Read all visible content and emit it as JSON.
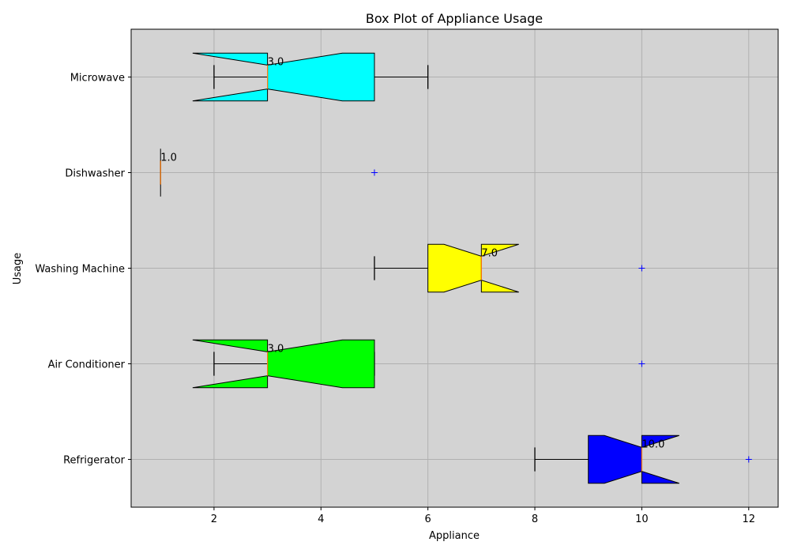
{
  "chart_data": {
    "type": "boxplot",
    "orientation": "horizontal",
    "notched": true,
    "title": "Box Plot of Appliance Usage",
    "xlabel": "Appliance",
    "ylabel": "Usage",
    "xlim": [
      0.45,
      12.55
    ],
    "x_ticks": [
      2,
      4,
      6,
      8,
      10,
      12
    ],
    "grid": true,
    "background_color": "#d3d3d3",
    "outlier_marker": "+",
    "outlier_color": "#0000ff",
    "median_color": "#ff7f0e",
    "categories": [
      "Refrigerator",
      "Air Conditioner",
      "Washing Machine",
      "Dishwasher",
      "Microwave"
    ],
    "boxes": [
      {
        "name": "Refrigerator",
        "color": "#0000ff",
        "whisker_low": 8,
        "q1": 9,
        "median": 10,
        "q3": 10,
        "whisker_high": 10,
        "notch_low": 9.3,
        "notch_high": 10.7,
        "outliers": [
          12
        ],
        "median_label": "10.0"
      },
      {
        "name": "Air Conditioner",
        "color": "#00ff00",
        "whisker_low": 2,
        "q1": 3,
        "median": 3,
        "q3": 5,
        "whisker_high": 5,
        "notch_low": 1.6,
        "notch_high": 4.4,
        "outliers": [
          10
        ],
        "median_label": "3.0"
      },
      {
        "name": "Washing Machine",
        "color": "#ffff00",
        "whisker_low": 5,
        "q1": 6,
        "median": 7,
        "q3": 7,
        "whisker_high": 7,
        "notch_low": 6.3,
        "notch_high": 7.7,
        "outliers": [
          10
        ],
        "median_label": "7.0"
      },
      {
        "name": "Dishwasher",
        "color": "#ffa500",
        "whisker_low": 1,
        "q1": 1,
        "median": 1,
        "q3": 1,
        "whisker_high": 1,
        "notch_low": 1,
        "notch_high": 1,
        "outliers": [
          5
        ],
        "median_label": "1.0"
      },
      {
        "name": "Microwave",
        "color": "#00ffff",
        "whisker_low": 2,
        "q1": 3,
        "median": 3,
        "q3": 5,
        "whisker_high": 6,
        "notch_low": 1.6,
        "notch_high": 4.4,
        "outliers": [],
        "median_label": "3.0"
      }
    ]
  }
}
